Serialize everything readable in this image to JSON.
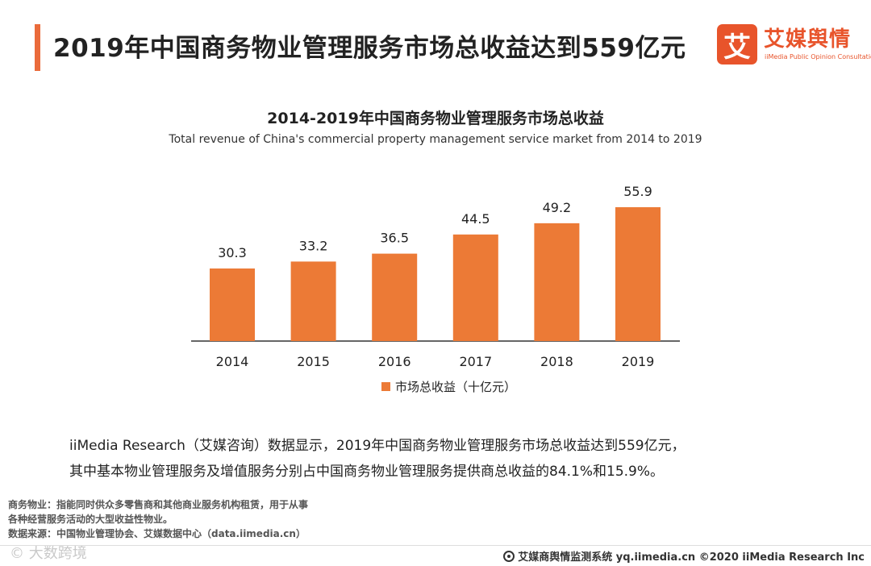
{
  "header": {
    "title": "2019年中国商务物业管理服务市场总收益达到559亿元"
  },
  "logo": {
    "mark": "艾",
    "name_cn": "艾媒舆情",
    "name_en": "iiMedia Public Opinion Consultation"
  },
  "chart_data": {
    "type": "bar",
    "title": "2014-2019年中国商务物业管理服务市场总收益",
    "subtitle": "Total revenue of China's commercial property management service market from 2014 to 2019",
    "categories": [
      "2014",
      "2015",
      "2016",
      "2017",
      "2018",
      "2019"
    ],
    "series": [
      {
        "name": "市场总收益（十亿元）",
        "values": [
          30.3,
          33.2,
          36.5,
          44.5,
          49.2,
          55.9
        ],
        "labels": [
          "30.3",
          "33.2",
          "36.5",
          "44.5",
          "49.2",
          "55.9"
        ]
      }
    ],
    "xlabel": "",
    "ylabel": "",
    "ylim": [
      0,
      60
    ],
    "grid": false,
    "legend_position": "bottom",
    "colors": {
      "bar": "#ec7a36",
      "axis": "#333333"
    }
  },
  "summary": {
    "line1": "iiMedia  Research（艾媒咨询）数据显示，2019年中国商务物业管理服务市场总收益达到559亿元，",
    "line2": "其中基本物业管理服务及增值服务分别占中国商务物业管理服务提供商总收益的84.1%和15.9%。"
  },
  "notes": {
    "definition_line1": "商务物业：指能同时供众多零售商和其他商业服务机构租赁，用于从事",
    "definition_line2": "各种经营服务活动的大型收益性物业。",
    "source": "数据来源：中国物业管理协会、艾媒数据中心（data.iimedia.cn）"
  },
  "watermark": {
    "text": "© 大数跨境"
  },
  "footer": {
    "text": "艾媒商舆情监测系统 yq.iimedia.cn  ©2020  iiMedia Research  Inc"
  }
}
